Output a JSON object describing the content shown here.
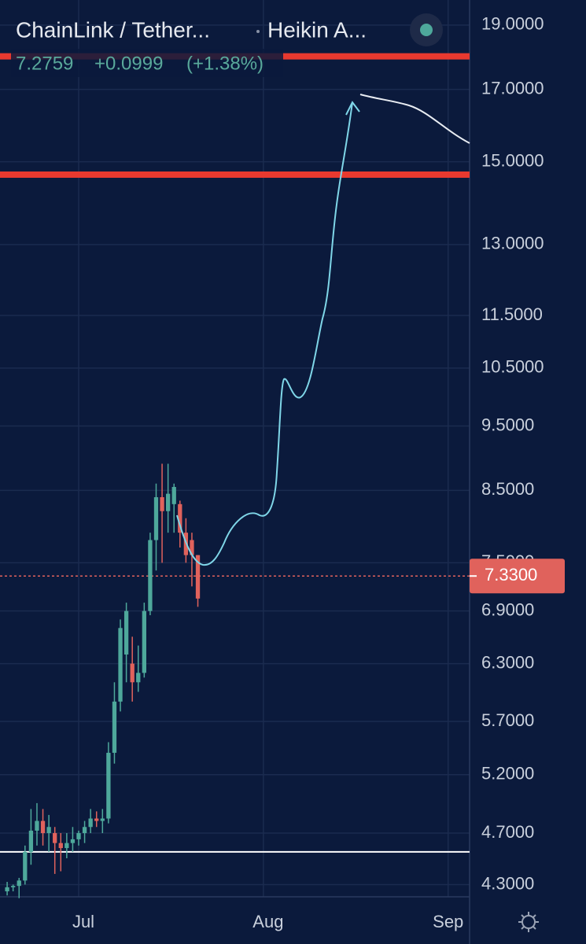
{
  "chart_data": {
    "type": "candlestick",
    "header": {
      "symbol": "ChainLink / Tether...",
      "chart_style": "Heikin A...",
      "last": 7.2759,
      "change": {
        "value": 0.0999,
        "label": "+0.0999"
      },
      "change_percent": {
        "value": 1.38,
        "label": "(+1.38%)"
      }
    },
    "log_scale": true,
    "grid": true,
    "up_color": "#4ea89b",
    "down_color": "#e0625c",
    "x": [
      -12,
      -11,
      -10,
      -9,
      -8,
      -7,
      -6,
      -5,
      -4,
      -3,
      -2,
      -1,
      0,
      1,
      2,
      3,
      4,
      5,
      6,
      7,
      8,
      9,
      10,
      11,
      12,
      13,
      14,
      15,
      16,
      17,
      18,
      19,
      20
    ],
    "open": [
      4.25,
      4.28,
      4.29,
      4.33,
      4.55,
      4.72,
      4.8,
      4.7,
      4.7,
      4.62,
      4.58,
      4.62,
      4.65,
      4.7,
      4.75,
      4.82,
      4.8,
      4.82,
      5.4,
      5.9,
      6.4,
      6.3,
      6.1,
      6.2,
      6.9,
      7.8,
      8.4,
      8.2,
      8.3,
      8.3,
      7.9,
      7.8,
      7.6
    ],
    "high": [
      4.32,
      4.3,
      4.35,
      4.6,
      4.9,
      4.95,
      4.9,
      4.85,
      4.75,
      4.7,
      4.7,
      4.75,
      4.72,
      4.8,
      4.9,
      4.88,
      4.9,
      5.5,
      6.1,
      6.8,
      7.0,
      6.6,
      6.5,
      7.0,
      7.9,
      8.6,
      8.9,
      8.9,
      8.6,
      8.35,
      8.1,
      7.9,
      7.6
    ],
    "low": [
      4.22,
      4.25,
      4.2,
      4.3,
      4.45,
      4.6,
      4.6,
      4.55,
      4.38,
      4.4,
      4.5,
      4.55,
      4.6,
      4.62,
      4.7,
      4.75,
      4.7,
      4.78,
      5.3,
      5.8,
      6.1,
      5.9,
      6.0,
      6.15,
      6.85,
      7.4,
      7.5,
      7.9,
      7.9,
      7.7,
      7.5,
      7.2,
      6.95
    ],
    "close": [
      4.28,
      4.29,
      4.33,
      4.55,
      4.72,
      4.8,
      4.7,
      4.75,
      4.62,
      4.58,
      4.62,
      4.65,
      4.7,
      4.75,
      4.82,
      4.8,
      4.82,
      5.4,
      5.9,
      6.7,
      6.9,
      6.1,
      6.2,
      6.9,
      7.8,
      8.4,
      8.2,
      8.45,
      8.55,
      7.9,
      7.6,
      7.6,
      7.05
    ],
    "xlim": [
      -13.2,
      65.6
    ],
    "xticks": [
      {
        "value": 0,
        "label": "Jul"
      },
      {
        "value": 31,
        "label": "Aug"
      },
      {
        "value": 62,
        "label": "Sep"
      }
    ],
    "ylim": [
      4.21,
      19.84
    ],
    "yticks": [
      {
        "value": 4.3,
        "label": "4.3000"
      },
      {
        "value": 4.7,
        "label": "4.7000"
      },
      {
        "value": 5.2,
        "label": "5.2000"
      },
      {
        "value": 5.7,
        "label": "5.7000"
      },
      {
        "value": 6.3,
        "label": "6.3000"
      },
      {
        "value": 6.9,
        "label": "6.9000"
      },
      {
        "value": 7.5,
        "label": "7.5000"
      },
      {
        "value": 8.5,
        "label": "8.5000"
      },
      {
        "value": 9.5,
        "label": "9.5000"
      },
      {
        "value": 10.5,
        "label": "10.5000"
      },
      {
        "value": 11.5,
        "label": "11.5000"
      },
      {
        "value": 13,
        "label": "13.0000"
      },
      {
        "value": 15,
        "label": "15.0000"
      },
      {
        "value": 17,
        "label": "17.0000"
      },
      {
        "value": 19,
        "label": "19.0000"
      }
    ],
    "hlines": [
      {
        "value": 18.0,
        "color": "#e8392f"
      },
      {
        "value": 14.67,
        "color": "#e8392f"
      },
      {
        "value": 4.55,
        "color": "#ffffff"
      }
    ],
    "last_price": {
      "value": 7.33,
      "label": "7.3300",
      "color": "#e0625c"
    }
  }
}
